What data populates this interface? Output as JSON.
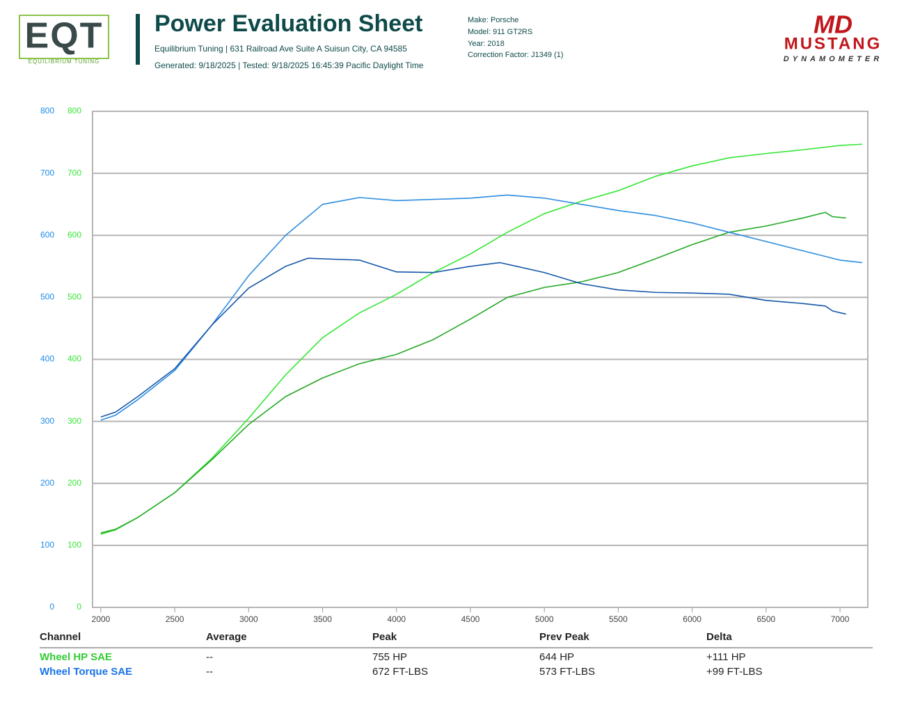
{
  "header": {
    "logo": "EQT",
    "logo_subtitle": "EQUILIBRIUM TUNING",
    "title": "Power Evaluation Sheet",
    "address": "Equilibrium Tuning | 631 Railroad Ave Suite A Suisun City, CA 94585",
    "generated": "Generated: 9/18/2025 | Tested: 9/18/2025 16:45:39 Pacific Daylight Time",
    "vehicle": [
      "Make: Porsche",
      "Model: 911 GT2RS",
      "Year: 2018",
      "Correction Factor: J1349 (1)"
    ],
    "brand_mark": "MD",
    "brand": "MUSTANG",
    "brand_subtitle": "DYNAMOMETER"
  },
  "chart_data": {
    "type": "line",
    "xlim": [
      1944,
      7188
    ],
    "xticks": [
      2000,
      2500,
      3000,
      3500,
      4000,
      4500,
      5000,
      5500,
      6000,
      6500,
      7000
    ],
    "ylim": [
      0,
      800
    ],
    "yticks": [
      0,
      100,
      200,
      300,
      400,
      500,
      600,
      700,
      800
    ],
    "y2lim": [
      0,
      800
    ],
    "y2ticks": [
      0,
      100,
      200,
      300,
      400,
      500,
      600,
      700,
      800
    ],
    "grid": true,
    "series": [
      {
        "color": "#33e633",
        "axis": "y2",
        "x": [
          2000,
          2100,
          2250,
          2500,
          2750,
          3000,
          3250,
          3500,
          3750,
          4000,
          4250,
          4500,
          4750,
          5000,
          5250,
          5500,
          5750,
          6000,
          6250,
          6500,
          6750,
          7000,
          7150
        ],
        "values": [
          118,
          125,
          145,
          185,
          240,
          305,
          375,
          435,
          475,
          505,
          540,
          570,
          605,
          635,
          655,
          672,
          695,
          712,
          725,
          732,
          738,
          745,
          747
        ]
      },
      {
        "color": "#22a822",
        "axis": "y2",
        "x": [
          2000,
          2100,
          2250,
          2500,
          2750,
          3000,
          3250,
          3500,
          3750,
          4000,
          4250,
          4500,
          4750,
          5000,
          5250,
          5500,
          5750,
          6000,
          6250,
          6500,
          6750,
          6900,
          6950,
          7040
        ],
        "values": [
          120,
          126,
          145,
          185,
          238,
          295,
          340,
          370,
          393,
          408,
          432,
          465,
          500,
          516,
          525,
          540,
          562,
          585,
          605,
          615,
          628,
          637,
          630,
          628
        ]
      },
      {
        "color": "#2b8ce0",
        "x": [
          2000,
          2100,
          2250,
          2500,
          2750,
          3000,
          3250,
          3500,
          3750,
          4000,
          4250,
          4500,
          4750,
          5000,
          5250,
          5500,
          5750,
          6000,
          6250,
          6500,
          6750,
          7000,
          7150
        ],
        "values": [
          302,
          310,
          335,
          382,
          455,
          535,
          600,
          650,
          661,
          656,
          658,
          660,
          665,
          660,
          650,
          640,
          632,
          620,
          605,
          590,
          575,
          560,
          556
        ]
      },
      {
        "color": "#1456a8",
        "x": [
          2000,
          2100,
          2250,
          2500,
          2750,
          3000,
          3250,
          3400,
          3750,
          4000,
          4250,
          4500,
          4700,
          5000,
          5250,
          5500,
          5750,
          6000,
          6250,
          6500,
          6750,
          6900,
          6950,
          7040
        ],
        "values": [
          307,
          315,
          340,
          385,
          455,
          515,
          550,
          563,
          560,
          541,
          540,
          550,
          556,
          540,
          522,
          512,
          508,
          507,
          505,
          495,
          490,
          486,
          478,
          473
        ]
      }
    ]
  },
  "table": {
    "columns": [
      "Channel",
      "Average",
      "Peak",
      "Prev Peak",
      "Delta"
    ],
    "row_colors": [
      "#33cc33",
      "#1a73e8"
    ],
    "rows": [
      [
        "Wheel HP SAE",
        "--",
        "755 HP",
        "644 HP",
        "+111 HP"
      ],
      [
        "Wheel Torque SAE",
        "--",
        "672 FT-LBS",
        "573 FT-LBS",
        "+99 FT-LBS"
      ]
    ]
  }
}
